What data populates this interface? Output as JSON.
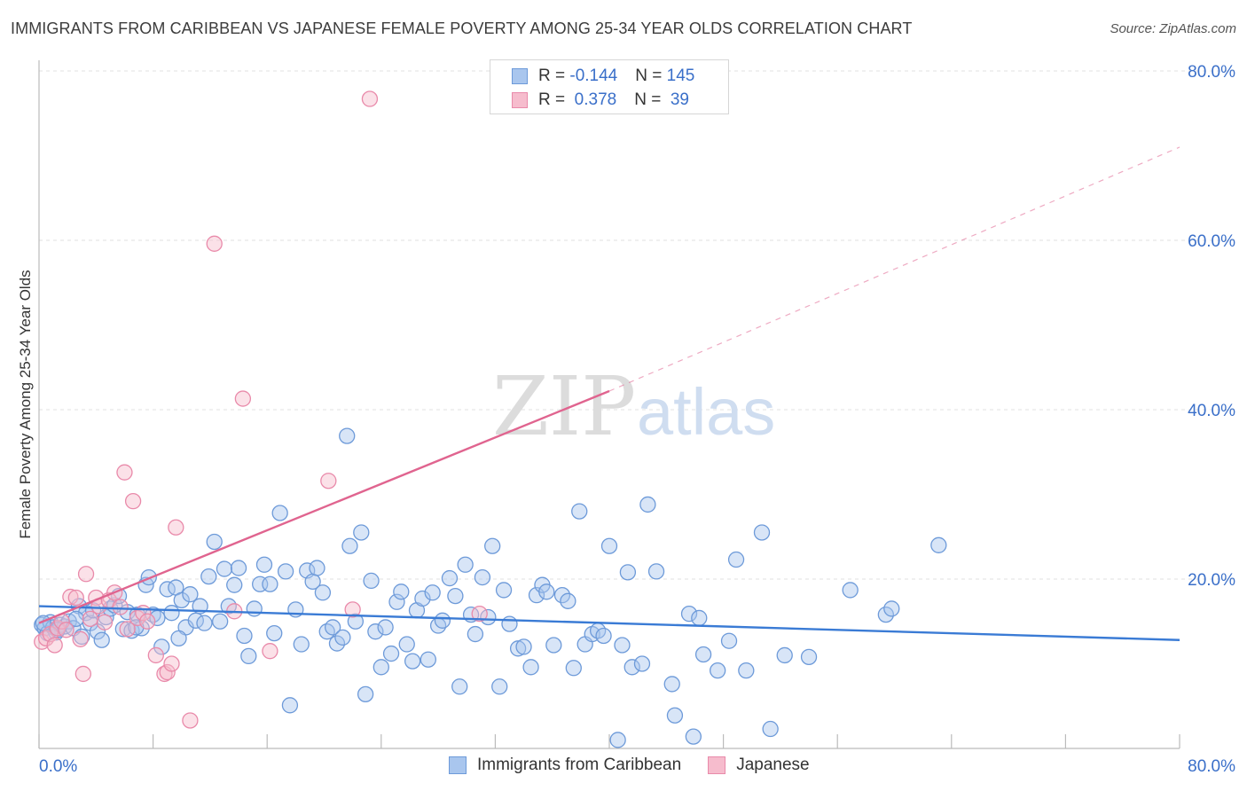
{
  "title": "IMMIGRANTS FROM CARIBBEAN VS JAPANESE FEMALE POVERTY AMONG 25-34 YEAR OLDS CORRELATION CHART",
  "source": "Source: ZipAtlas.com",
  "watermark": {
    "zip": "ZIP",
    "atlas": "atlas"
  },
  "legend_top": {
    "rows": [
      {
        "r_label": "R = ",
        "r_value": "-0.144",
        "n_label": "N = ",
        "n_value": "145"
      },
      {
        "r_label": "R = ",
        "r_value": " 0.378",
        "n_label": "N = ",
        "n_value": " 39"
      }
    ]
  },
  "colors": {
    "blue_fill": "#a9c6ee",
    "blue_stroke": "#6d9ad9",
    "blue_line": "#3a7bd5",
    "pink_fill": "#f6bccd",
    "pink_stroke": "#e98aaa",
    "pink_line": "#e0648f",
    "tick_label": "#3a6fc9",
    "grid": "#e2e2e2"
  },
  "chart_data": {
    "type": "scatter",
    "title": "IMMIGRANTS FROM CARIBBEAN VS JAPANESE FEMALE POVERTY AMONG 25-34 YEAR OLDS CORRELATION CHART",
    "xlabel": "",
    "ylabel": "Female Poverty Among 25-34 Year Olds",
    "xlim": [
      0,
      80
    ],
    "ylim": [
      0,
      80
    ],
    "x_tick_labels": [
      "0.0%",
      "80.0%"
    ],
    "y_tick_labels": [
      "20.0%",
      "40.0%",
      "60.0%",
      "80.0%"
    ],
    "y_ticks": [
      20,
      40,
      60,
      80
    ],
    "grid": "horizontal dashed",
    "legend_placement": "bottom-center",
    "series": [
      {
        "name": "Immigrants from Caribbean",
        "color": "#6d9ad9",
        "r": -0.144,
        "n": 145,
        "trend": {
          "x": [
            0,
            80
          ],
          "y": [
            16.8,
            12.8
          ]
        },
        "points": [
          [
            0.2,
            14.6
          ],
          [
            0.4,
            14.2
          ],
          [
            0.6,
            13.6
          ],
          [
            0.8,
            14.9
          ],
          [
            1.0,
            14.3
          ],
          [
            1.2,
            13.7
          ],
          [
            1.5,
            14.6
          ],
          [
            1.8,
            14.4
          ],
          [
            2.1,
            15.0
          ],
          [
            2.4,
            14.2
          ],
          [
            2.8,
            16.8
          ],
          [
            3.0,
            13.2
          ],
          [
            3.3,
            16.0
          ],
          [
            3.6,
            14.8
          ],
          [
            3.8,
            16.3
          ],
          [
            4.1,
            13.8
          ],
          [
            4.4,
            12.8
          ],
          [
            4.7,
            15.5
          ],
          [
            5.0,
            16.5
          ],
          [
            5.3,
            16.9
          ],
          [
            5.6,
            18.0
          ],
          [
            5.9,
            14.1
          ],
          [
            6.2,
            16.1
          ],
          [
            6.5,
            13.9
          ],
          [
            6.9,
            15.8
          ],
          [
            7.2,
            14.2
          ],
          [
            7.5,
            19.3
          ],
          [
            7.7,
            20.2
          ],
          [
            8.0,
            15.8
          ],
          [
            8.3,
            15.4
          ],
          [
            8.6,
            12.0
          ],
          [
            9.0,
            18.8
          ],
          [
            9.3,
            16.0
          ],
          [
            9.6,
            19.0
          ],
          [
            10.0,
            17.5
          ],
          [
            10.3,
            14.3
          ],
          [
            10.6,
            18.2
          ],
          [
            11.0,
            15.1
          ],
          [
            11.3,
            16.8
          ],
          [
            11.6,
            14.8
          ],
          [
            11.9,
            20.3
          ],
          [
            12.3,
            24.4
          ],
          [
            12.7,
            15.0
          ],
          [
            13.0,
            21.2
          ],
          [
            13.3,
            16.8
          ],
          [
            13.7,
            19.3
          ],
          [
            14.0,
            21.3
          ],
          [
            14.4,
            13.3
          ],
          [
            14.7,
            10.9
          ],
          [
            15.1,
            16.5
          ],
          [
            15.5,
            19.4
          ],
          [
            15.8,
            21.7
          ],
          [
            16.2,
            19.4
          ],
          [
            16.5,
            13.6
          ],
          [
            16.9,
            27.8
          ],
          [
            17.3,
            20.9
          ],
          [
            17.6,
            5.1
          ],
          [
            18.0,
            16.4
          ],
          [
            18.4,
            12.3
          ],
          [
            18.8,
            21.0
          ],
          [
            19.2,
            19.7
          ],
          [
            19.5,
            21.3
          ],
          [
            19.9,
            18.4
          ],
          [
            20.2,
            13.8
          ],
          [
            20.6,
            14.3
          ],
          [
            20.9,
            12.4
          ],
          [
            21.3,
            13.1
          ],
          [
            21.6,
            36.9
          ],
          [
            21.8,
            23.9
          ],
          [
            22.2,
            15.0
          ],
          [
            22.6,
            25.5
          ],
          [
            22.9,
            6.4
          ],
          [
            23.3,
            19.8
          ],
          [
            23.6,
            13.8
          ],
          [
            24.0,
            9.6
          ],
          [
            24.3,
            14.3
          ],
          [
            24.7,
            11.2
          ],
          [
            25.1,
            17.3
          ],
          [
            25.4,
            18.5
          ],
          [
            25.8,
            12.3
          ],
          [
            26.2,
            10.3
          ],
          [
            26.5,
            16.3
          ],
          [
            26.9,
            17.7
          ],
          [
            27.3,
            10.5
          ],
          [
            27.6,
            18.4
          ],
          [
            28.0,
            14.5
          ],
          [
            28.3,
            15.1
          ],
          [
            28.8,
            20.1
          ],
          [
            29.2,
            18.0
          ],
          [
            29.5,
            7.3
          ],
          [
            29.9,
            21.7
          ],
          [
            30.3,
            15.8
          ],
          [
            30.6,
            13.5
          ],
          [
            31.1,
            20.2
          ],
          [
            31.5,
            15.5
          ],
          [
            31.8,
            23.9
          ],
          [
            32.3,
            7.3
          ],
          [
            32.6,
            18.7
          ],
          [
            33.0,
            14.7
          ],
          [
            33.6,
            11.8
          ],
          [
            34.0,
            12.0
          ],
          [
            34.5,
            9.6
          ],
          [
            34.9,
            18.1
          ],
          [
            35.3,
            19.3
          ],
          [
            35.6,
            18.5
          ],
          [
            36.1,
            12.2
          ],
          [
            36.7,
            18.1
          ],
          [
            37.1,
            17.4
          ],
          [
            37.5,
            9.5
          ],
          [
            37.9,
            28.0
          ],
          [
            38.3,
            12.3
          ],
          [
            38.8,
            13.5
          ],
          [
            39.2,
            13.9
          ],
          [
            39.6,
            13.3
          ],
          [
            40.0,
            23.9
          ],
          [
            40.6,
            1.0
          ],
          [
            40.9,
            12.2
          ],
          [
            41.3,
            20.8
          ],
          [
            41.6,
            9.6
          ],
          [
            42.3,
            10.0
          ],
          [
            42.7,
            28.8
          ],
          [
            43.3,
            20.9
          ],
          [
            44.4,
            7.6
          ],
          [
            44.6,
            3.9
          ],
          [
            45.6,
            15.9
          ],
          [
            45.9,
            1.4
          ],
          [
            46.3,
            15.4
          ],
          [
            46.6,
            11.1
          ],
          [
            47.6,
            9.2
          ],
          [
            48.4,
            12.7
          ],
          [
            48.9,
            22.3
          ],
          [
            49.6,
            9.2
          ],
          [
            50.7,
            25.5
          ],
          [
            51.3,
            2.3
          ],
          [
            52.3,
            11.0
          ],
          [
            54.0,
            10.8
          ],
          [
            56.9,
            18.7
          ],
          [
            59.4,
            15.8
          ],
          [
            59.8,
            16.5
          ],
          [
            63.1,
            24.0
          ],
          [
            0.3,
            14.8
          ],
          [
            1.3,
            14.0
          ],
          [
            2.6,
            15.3
          ],
          [
            6.8,
            14.3
          ],
          [
            9.8,
            13.0
          ]
        ]
      },
      {
        "name": "Japanese",
        "color": "#e98aaa",
        "r": 0.378,
        "n": 39,
        "trend": {
          "x": [
            0,
            40
          ],
          "y": [
            14.8,
            42.2
          ]
        },
        "trend_extension": {
          "x": [
            40,
            80
          ],
          "y": [
            42.2,
            71.0
          ]
        },
        "points": [
          [
            0.2,
            12.6
          ],
          [
            0.5,
            13.0
          ],
          [
            0.8,
            13.5
          ],
          [
            1.1,
            12.2
          ],
          [
            1.3,
            14.2
          ],
          [
            1.6,
            15.0
          ],
          [
            1.9,
            14.0
          ],
          [
            2.2,
            17.9
          ],
          [
            2.6,
            17.8
          ],
          [
            2.9,
            12.9
          ],
          [
            3.1,
            8.8
          ],
          [
            3.3,
            20.6
          ],
          [
            3.6,
            15.3
          ],
          [
            4.0,
            17.8
          ],
          [
            4.2,
            16.8
          ],
          [
            4.6,
            14.9
          ],
          [
            4.9,
            17.5
          ],
          [
            5.3,
            18.4
          ],
          [
            5.7,
            16.7
          ],
          [
            6.0,
            32.6
          ],
          [
            6.2,
            14.1
          ],
          [
            6.6,
            29.2
          ],
          [
            6.9,
            15.4
          ],
          [
            7.3,
            16.0
          ],
          [
            7.6,
            15.0
          ],
          [
            8.2,
            11.0
          ],
          [
            8.8,
            8.8
          ],
          [
            9.0,
            9.0
          ],
          [
            9.3,
            10.0
          ],
          [
            9.6,
            26.1
          ],
          [
            10.6,
            3.3
          ],
          [
            12.3,
            59.6
          ],
          [
            13.7,
            16.2
          ],
          [
            14.3,
            41.3
          ],
          [
            16.2,
            11.5
          ],
          [
            20.3,
            31.6
          ],
          [
            22.0,
            16.4
          ],
          [
            23.2,
            76.7
          ],
          [
            30.9,
            15.9
          ]
        ]
      }
    ]
  },
  "legend_bottom": {
    "items": [
      {
        "label": "Immigrants from Caribbean"
      },
      {
        "label": "Japanese"
      }
    ]
  }
}
